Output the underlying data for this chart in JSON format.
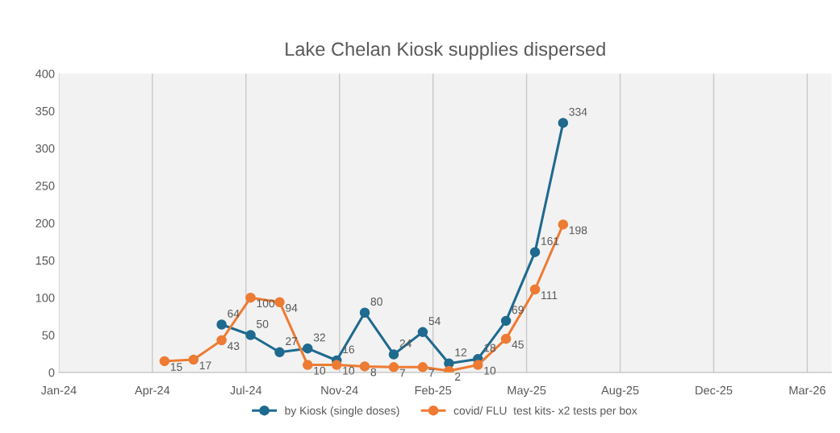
{
  "chart_data": {
    "type": "line",
    "title": "Lake Chelan Kiosk supplies dispersed",
    "series": [
      {
        "name": "by Kiosk (single doses)",
        "color": "#1f6a8f",
        "x": [
          "2024-07",
          "2024-08",
          "2024-09",
          "2024-10",
          "2024-11",
          "2024-12",
          "2025-01",
          "2025-02",
          "2025-03",
          "2025-04",
          "2025-05",
          "2025-06",
          "2025-07"
        ],
        "values": [
          64,
          50,
          27,
          32,
          16,
          80,
          24,
          54,
          12,
          18,
          69,
          161,
          334
        ]
      },
      {
        "name": "covid/ FLU  test kits- x2 tests per box",
        "color": "#ee7b33",
        "x": [
          "2024-05",
          "2024-06",
          "2024-07",
          "2024-08",
          "2024-09",
          "2024-10",
          "2024-11",
          "2024-12",
          "2025-01",
          "2025-02",
          "2025-03",
          "2025-04",
          "2025-05",
          "2025-06",
          "2025-07"
        ],
        "values": [
          15,
          17,
          43,
          100,
          94,
          10,
          10,
          8,
          7,
          7,
          2,
          10,
          45,
          111,
          198
        ]
      }
    ],
    "xlim": [
      "2024-01-09",
      "2026-04-14"
    ],
    "xticks": [
      {
        "value": "2024-01-09",
        "label": "Jan-24"
      },
      {
        "value": "2024-04-18",
        "label": "Apr-24"
      },
      {
        "value": "2024-07-27",
        "label": "Jul-24"
      },
      {
        "value": "2024-11-04",
        "label": "Nov-24"
      },
      {
        "value": "2025-02-12",
        "label": "Feb-25"
      },
      {
        "value": "2025-05-23",
        "label": "May-25"
      },
      {
        "value": "2025-08-31",
        "label": "Aug-25"
      },
      {
        "value": "2025-12-09",
        "label": "Dec-25"
      },
      {
        "value": "2026-03-19",
        "label": "Mar-26"
      }
    ],
    "ylim": [
      0,
      400
    ],
    "yticks": [
      0,
      50,
      100,
      150,
      200,
      250,
      300,
      350,
      400
    ],
    "grid": "x",
    "legend": "bottom",
    "marker": "circle",
    "line_style": "solid",
    "data_labels": true
  }
}
